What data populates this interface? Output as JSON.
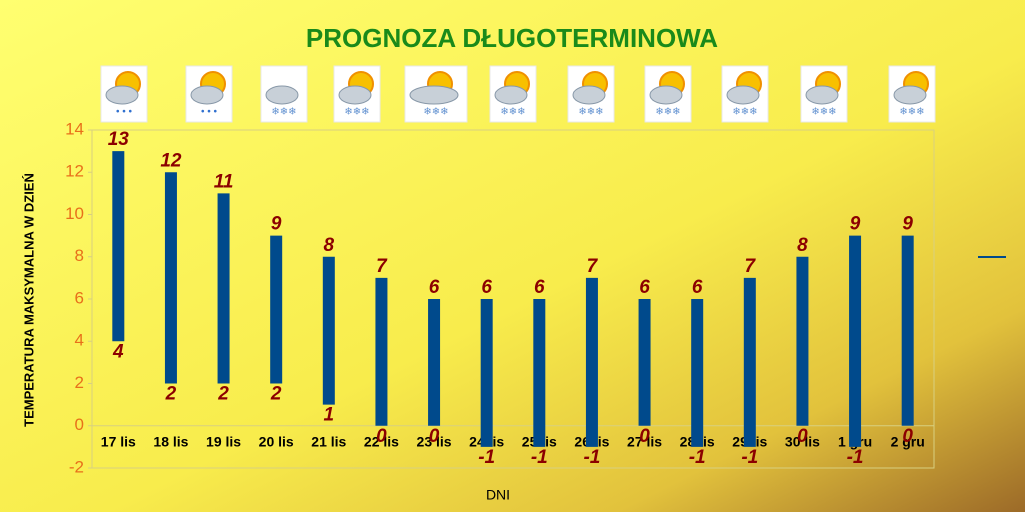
{
  "chart_data": {
    "type": "floating-bar",
    "title": "PROGNOZA DŁUGOTERMINOWA",
    "y_label": "TEMPERATURA MAKSYMALNA W DZIEŃ",
    "x_label": "DNI",
    "categories": [
      "17 lis",
      "18 lis",
      "19 lis",
      "20 lis",
      "21 lis",
      "22 lis",
      "23 lis",
      "24 lis",
      "25 lis",
      "26 lis",
      "27 lis",
      "28 lis",
      "29 lis",
      "30 lis",
      "1 gru",
      "2 gru"
    ],
    "high": [
      13,
      12,
      11,
      9,
      8,
      7,
      6,
      6,
      6,
      7,
      6,
      6,
      7,
      8,
      9,
      9
    ],
    "low": [
      4,
      2,
      2,
      2,
      1,
      0,
      0,
      -1,
      -1,
      -1,
      0,
      -1,
      -1,
      0,
      -1,
      0
    ],
    "color": "#004a8c",
    "label_color": "#8b0000",
    "ylim": [
      -2,
      14
    ],
    "yticks": [
      -2,
      0,
      2,
      4,
      6,
      8,
      10,
      12,
      14
    ],
    "grid": false
  }
}
